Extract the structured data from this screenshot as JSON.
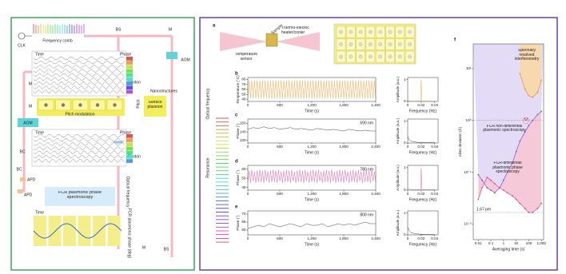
{
  "diagram": {
    "clk": "CLK",
    "comb": "Frequency comb",
    "bs_top": "BS",
    "m_top": "M",
    "aom_right": "AOM",
    "lens_top": "L",
    "photon_top": "Photon",
    "nano": "Nanostructures",
    "time_top": "Time",
    "phase_top": "Phase",
    "pitch": "Pitch",
    "m_left1": "M",
    "m_left2": "M",
    "aom_left": "AOM",
    "pitch_mod": "Pitch modulation",
    "surface_plasmon": "Surface plasmon",
    "time_mid": "Time",
    "phase_mid": "Phase",
    "lens_mid": "L",
    "photon_mid": "Photon",
    "bc1": "BC",
    "bc2": "BC",
    "apd1": "APD",
    "apd2": "APD",
    "fcr": "FCR plasmonic phase spectroscopy",
    "optical_freq": "Optical frequency",
    "m_bottom": "M",
    "bs_bottom": "BS",
    "time_bottom": "Time",
    "fcr_phase": "FCR plasmonic phase (deg)"
  },
  "setup": {
    "panel": "a",
    "temperature_sensor": "Temperature sensor",
    "sample": "Sample",
    "heater": "Thermo-electric heater/cooler",
    "optical_frequency": "Optical frequency",
    "resonance": "Resonance"
  },
  "chart_data": [
    {
      "type": "line",
      "panel": "b",
      "ylabel": "Temperature (°C)",
      "xlabel": "Time (s)",
      "color": "#e9a23b",
      "xlim": [
        0,
        2400
      ],
      "xticks": [
        0,
        600,
        {
          "value": 1200,
          "label": "1,200"
        },
        {
          "value": 1800,
          "label": "1,800"
        },
        {
          "value": 2400,
          "label": "2,400"
        }
      ],
      "ylim": [
        36,
        84
      ],
      "yticks": [
        40,
        50,
        60,
        70,
        80
      ],
      "x": [
        0,
        25,
        50,
        75,
        100,
        125,
        150,
        175,
        200,
        225,
        250,
        275,
        300,
        325,
        350,
        375,
        400,
        425,
        450,
        475,
        500,
        525,
        550,
        575,
        600,
        625,
        650,
        675,
        700,
        725,
        750,
        775,
        800,
        825,
        850,
        875,
        900,
        925,
        950,
        975,
        1000,
        1025,
        1050,
        1075,
        1100,
        1125,
        1150,
        1175,
        1200,
        1225,
        1250,
        1275,
        1300,
        1325,
        1350,
        1375,
        1400,
        1425,
        1450,
        1475,
        1500,
        1525,
        1550,
        1575,
        1600,
        1625,
        1650,
        1675,
        1700,
        1725,
        1750,
        1775,
        1800,
        1825,
        1850,
        1875,
        1900,
        1925,
        1950,
        1975,
        2000,
        2025,
        2050,
        2075,
        2100,
        2125,
        2150,
        2175,
        2200,
        2225,
        2250,
        2275,
        2300,
        2325,
        2350,
        2375,
        2400
      ],
      "values": [
        42,
        78,
        42,
        78,
        42,
        78,
        42,
        78,
        42,
        78,
        42,
        78,
        42,
        78,
        42,
        78,
        42,
        78,
        42,
        78,
        42,
        78,
        42,
        78,
        42,
        78,
        42,
        78,
        42,
        78,
        42,
        78,
        42,
        78,
        42,
        78,
        42,
        78,
        42,
        78,
        42,
        78,
        42,
        78,
        42,
        78,
        42,
        78,
        42,
        78,
        42,
        78,
        42,
        78,
        42,
        78,
        42,
        78,
        42,
        78,
        42,
        78,
        42,
        78,
        42,
        78,
        42,
        78,
        42,
        78,
        42,
        78,
        42,
        78,
        42,
        78,
        42,
        78,
        42,
        78,
        42,
        78,
        42,
        78,
        42,
        78,
        42,
        78,
        42,
        78,
        42,
        78,
        42,
        78,
        42,
        78,
        42
      ]
    },
    {
      "type": "line",
      "ylabel": "Amplitude (a.u.)",
      "xlabel": "Frequency (Hz)",
      "color": "#e9a23b",
      "xlim": [
        0,
        0.045
      ],
      "xticks": [
        0,
        0.02,
        0.04
      ],
      "ylim": [
        0,
        1.1
      ],
      "yticks": [
        0,
        1
      ],
      "x": [
        0,
        0.002,
        0.005,
        0.01,
        0.015,
        0.019,
        0.02,
        0.021,
        0.025,
        0.03,
        0.035,
        0.04
      ],
      "values": [
        0.05,
        0.03,
        0.01,
        0.01,
        0.01,
        0.02,
        1,
        0.02,
        0.01,
        0.01,
        0.01,
        0.01
      ]
    },
    {
      "type": "line",
      "panel": "c",
      "annotation": "690 nm",
      "ylabel": "Phase (°)",
      "xlabel": "Time (s)",
      "color": "#333333",
      "xlim": [
        0,
        2400
      ],
      "xticks": [
        0,
        600,
        {
          "value": 1200,
          "label": "1,200"
        },
        {
          "value": 1800,
          "label": "1,800"
        },
        {
          "value": 2400,
          "label": "2,400"
        }
      ],
      "ylim": [
        127,
        155
      ],
      "yticks": [
        130,
        140,
        150
      ],
      "x": [
        0,
        100,
        200,
        300,
        400,
        500,
        600,
        700,
        800,
        900,
        1000,
        1100,
        1200,
        1300,
        1400,
        1500,
        1600,
        1700,
        1800,
        1900,
        2000,
        2100,
        2200,
        2300,
        2400
      ],
      "values": [
        143,
        145,
        144,
        146,
        144,
        145,
        143,
        144,
        145,
        143,
        144,
        143,
        142,
        144,
        143,
        142,
        143,
        142,
        141,
        143,
        142,
        141,
        142,
        141,
        141
      ]
    },
    {
      "type": "line",
      "ylabel": "Amplitude (a.u.)",
      "xlabel": "Frequency (Hz)",
      "color": "#333333",
      "xlim": [
        0,
        0.045
      ],
      "xticks": [
        0,
        0.02,
        0.04
      ],
      "ylim": [
        0,
        1.1
      ],
      "yticks": [
        0,
        1
      ],
      "x": [
        0,
        0.002,
        0.005,
        0.01,
        0.015,
        0.019,
        0.02,
        0.021,
        0.025,
        0.03,
        0.035,
        0.04
      ],
      "values": [
        0.3,
        0.15,
        0.08,
        0.05,
        0.03,
        0.03,
        0.04,
        0.03,
        0.02,
        0.02,
        0.02,
        0.02
      ]
    },
    {
      "type": "line",
      "panel": "d",
      "annotation": "780 nm",
      "ylabel": "Phase (°)",
      "xlabel": "Time (s)",
      "color": "#e0559b",
      "xlim": [
        0,
        2400
      ],
      "xticks": [
        0,
        600,
        {
          "value": 1200,
          "label": "1,200"
        },
        {
          "value": 1800,
          "label": "1,800"
        },
        {
          "value": 2400,
          "label": "2,400"
        }
      ],
      "ylim": [
        37,
        64
      ],
      "yticks": [
        40,
        50,
        60
      ],
      "x": [
        0,
        25,
        50,
        75,
        100,
        125,
        150,
        175,
        200,
        225,
        250,
        275,
        300,
        325,
        350,
        375,
        400,
        425,
        450,
        475,
        500,
        525,
        550,
        575,
        600,
        625,
        650,
        675,
        700,
        725,
        750,
        775,
        800,
        825,
        850,
        875,
        900,
        925,
        950,
        975,
        1000,
        1025,
        1050,
        1075,
        1100,
        1125,
        1150,
        1175,
        1200,
        1225,
        1250,
        1275,
        1300,
        1325,
        1350,
        1375,
        1400,
        1425,
        1450,
        1475,
        1500,
        1525,
        1550,
        1575,
        1600,
        1625,
        1650,
        1675,
        1700,
        1725,
        1750,
        1775,
        1800,
        1825,
        1850,
        1875,
        1900,
        1925,
        1950,
        1975,
        2000,
        2025,
        2050,
        2075,
        2100,
        2125,
        2150,
        2175,
        2200,
        2225,
        2250,
        2275,
        2300,
        2325,
        2350,
        2375,
        2400
      ],
      "values": [
        46,
        58,
        45,
        59,
        47,
        57,
        45,
        58,
        46,
        59,
        46,
        58,
        45,
        59,
        47,
        57,
        45,
        58,
        46,
        59,
        46,
        58,
        45,
        59,
        47,
        57,
        45,
        58,
        46,
        59,
        46,
        58,
        45,
        59,
        47,
        57,
        45,
        58,
        46,
        59,
        46,
        58,
        45,
        59,
        47,
        57,
        45,
        58,
        46,
        59,
        46,
        58,
        45,
        59,
        47,
        57,
        45,
        58,
        46,
        59,
        46,
        58,
        45,
        59,
        47,
        57,
        45,
        58,
        46,
        59,
        46,
        58,
        45,
        59,
        47,
        57,
        45,
        58,
        46,
        59,
        46,
        58,
        45,
        59,
        47,
        57,
        45,
        58,
        46,
        59,
        46,
        58,
        45,
        59,
        47,
        57,
        46
      ]
    },
    {
      "type": "line",
      "ylabel": "Amplitude (a.u.)",
      "xlabel": "Frequency (Hz)",
      "color": "#e0559b",
      "xlim": [
        0,
        0.045
      ],
      "xticks": [
        0,
        0.02,
        0.04
      ],
      "ylim": [
        0,
        1.1
      ],
      "yticks": [
        0,
        1
      ],
      "x": [
        0,
        0.002,
        0.005,
        0.01,
        0.015,
        0.019,
        0.02,
        0.021,
        0.025,
        0.03,
        0.035,
        0.04
      ],
      "values": [
        0.1,
        0.05,
        0.02,
        0.02,
        0.02,
        0.03,
        0.95,
        0.03,
        0.02,
        0.02,
        0.02,
        0.02
      ]
    },
    {
      "type": "line",
      "panel": "e",
      "annotation": "800 nm",
      "ylabel": "Phase (°)",
      "xlabel": "Time (s)",
      "color": "#333333",
      "xlim": [
        0,
        2400
      ],
      "xticks": [
        0,
        600,
        {
          "value": 1200,
          "label": "1,200"
        },
        {
          "value": 1800,
          "label": "1,800"
        },
        {
          "value": 2400,
          "label": "2,400"
        }
      ],
      "ylim": [
        57,
        72
      ],
      "yticks": [
        60,
        65,
        70
      ],
      "x": [
        0,
        100,
        200,
        300,
        400,
        500,
        600,
        700,
        800,
        900,
        1000,
        1100,
        1200,
        1300,
        1400,
        1500,
        1600,
        1700,
        1800,
        1900,
        2000,
        2100,
        2200,
        2300,
        2400
      ],
      "values": [
        61,
        62,
        63,
        62,
        64,
        63,
        62,
        63,
        64,
        63,
        62,
        64,
        63,
        63,
        64,
        62,
        63,
        64,
        63,
        64,
        63,
        64,
        65,
        64,
        64
      ]
    },
    {
      "type": "line",
      "ylabel": "Amplitude (a.u.)",
      "xlabel": "Frequency (Hz)",
      "color": "#333333",
      "xlim": [
        0,
        0.045
      ],
      "xticks": [
        0,
        0.02,
        0.04
      ],
      "ylim": [
        0,
        1.1
      ],
      "yticks": [
        0,
        1
      ],
      "x": [
        0,
        0.002,
        0.005,
        0.01,
        0.015,
        0.019,
        0.02,
        0.021,
        0.025,
        0.03,
        0.035,
        0.04
      ],
      "values": [
        0.35,
        0.2,
        0.1,
        0.06,
        0.04,
        0.03,
        0.03,
        0.03,
        0.02,
        0.02,
        0.02,
        0.02
      ]
    },
    {
      "type": "allan",
      "panel": "f",
      "ylabel": "Allan deviation (Å)",
      "xlabel": "Averaging time (s)",
      "log_x": true,
      "log_y": true,
      "xlim": [
        0.004,
        1500
      ],
      "ylim": [
        0.005,
        30
      ],
      "xticks": [
        0.01,
        0.1,
        1,
        10,
        100,
        {
          "value": 1000,
          "label": "1,000"
        }
      ],
      "yticks": [
        {
          "value": 0.01,
          "label": "10⁻²"
        },
        {
          "value": 0.1,
          "label": "10⁻¹"
        },
        {
          "value": 1,
          "label": "10⁰"
        },
        {
          "value": 10,
          "label": "10¹"
        }
      ],
      "series": [
        {
          "name": "Spectrally resolved interferometry",
          "color": "#e8932e",
          "x": [
            20,
            50,
            100,
            200,
            500,
            1000
          ],
          "values": [
            8,
            4,
            3,
            2.8,
            3.5,
            6
          ]
        },
        {
          "name": "FCR non-differential plasmonic spectroscopy",
          "color": "#6d5bd0",
          "x": [
            0.01,
            0.02,
            0.05,
            0.1,
            0.2,
            0.5,
            1,
            2,
            5,
            10,
            20,
            50,
            100,
            200,
            500,
            1000
          ],
          "values": [
            0.09,
            0.07,
            0.05,
            0.045,
            0.04,
            0.05,
            0.07,
            0.1,
            0.15,
            0.25,
            0.4,
            0.6,
            0.8,
            1,
            1.3,
            1.5
          ]
        },
        {
          "name": "FCR-differential plasmonic phase spectroscopy",
          "color": "#e0488f",
          "x": [
            0.01,
            0.02,
            0.05,
            0.1,
            0.2,
            0.5,
            1,
            2,
            5,
            10,
            20,
            50,
            100,
            200,
            500,
            1000
          ],
          "values": [
            0.03,
            0.05,
            0.08,
            0.07,
            0.06,
            0.05,
            0.045,
            0.04,
            0.035,
            0.03,
            0.025,
            0.02,
            0.0167,
            0.0167,
            0.02,
            0.025
          ]
        }
      ],
      "reference_lines": [
        {
          "value": 1,
          "label": "M"
        },
        {
          "value": 0.0167,
          "label": "1.67 pm"
        }
      ]
    }
  ]
}
